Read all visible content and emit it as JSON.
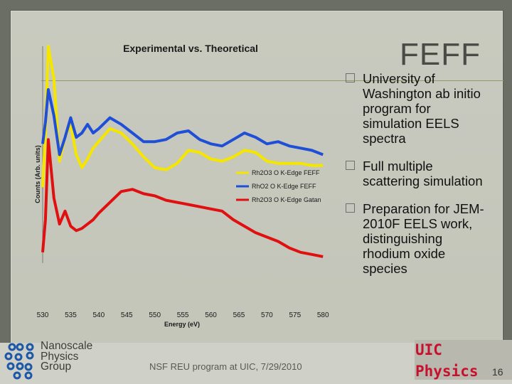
{
  "slide": {
    "title": "FEFF",
    "bullets": [
      "University of Washington ab initio program for simulation EELS spectra",
      "Full multiple scattering simulation",
      "Preparation for JEM-2010F EELS work, distinguishing rhodium oxide species"
    ],
    "footer": "NSF REU program at UIC, 7/29/2010",
    "logo_text": [
      "Nanoscale",
      "Physics",
      "Group"
    ],
    "uic_line1": "UIC",
    "uic_line2": "Physics",
    "page_number": "16",
    "bullet_icon": "box-bullet-icon",
    "colors": {
      "background": "#c6c8bc",
      "accent": "#c8102e"
    }
  },
  "chart_data": {
    "type": "line",
    "title": "Experimental vs. Theoretical",
    "xlabel": "Energy (eV)",
    "ylabel": "Counts (Arb. units)",
    "xlim": [
      530,
      582
    ],
    "ylim": [
      0,
      1
    ],
    "xticks": [
      "530",
      "535",
      "540",
      "545",
      "550",
      "555",
      "560",
      "565",
      "570",
      "575",
      "580"
    ],
    "legend_placement": "right",
    "series": [
      {
        "name": "Rh2O3 O K-Edge FEFF",
        "color": "#f5e600",
        "x": [
          530,
          530.5,
          531,
          532,
          533,
          534,
          535,
          536,
          537,
          538,
          539,
          540,
          542,
          544,
          546,
          548,
          550,
          552,
          554,
          556,
          558,
          560,
          562,
          564,
          566,
          568,
          570,
          572,
          574,
          576,
          578,
          580
        ],
        "y": [
          0.35,
          0.6,
          1.0,
          0.85,
          0.47,
          0.58,
          0.64,
          0.5,
          0.44,
          0.48,
          0.53,
          0.56,
          0.62,
          0.6,
          0.55,
          0.49,
          0.44,
          0.43,
          0.46,
          0.52,
          0.51,
          0.48,
          0.47,
          0.49,
          0.52,
          0.51,
          0.47,
          0.46,
          0.46,
          0.46,
          0.45,
          0.45
        ]
      },
      {
        "name": "RhO2 O K-Edge FEFF",
        "color": "#1f4fd6",
        "x": [
          530,
          530.5,
          531,
          532,
          533,
          534,
          535,
          536,
          537,
          538,
          539,
          540,
          542,
          544,
          546,
          548,
          550,
          552,
          554,
          556,
          558,
          560,
          562,
          564,
          566,
          568,
          570,
          572,
          574,
          576,
          578,
          580
        ],
        "y": [
          0.55,
          0.65,
          0.8,
          0.68,
          0.5,
          0.58,
          0.67,
          0.58,
          0.6,
          0.64,
          0.6,
          0.62,
          0.67,
          0.64,
          0.6,
          0.56,
          0.56,
          0.57,
          0.6,
          0.61,
          0.57,
          0.55,
          0.54,
          0.57,
          0.6,
          0.58,
          0.55,
          0.56,
          0.54,
          0.53,
          0.52,
          0.5
        ]
      },
      {
        "name": "Rh2O3 O K-Edge Gatan",
        "color": "#e01010",
        "x": [
          530,
          530.5,
          531,
          532,
          533,
          534,
          535,
          536,
          537,
          538,
          539,
          540,
          542,
          544,
          546,
          548,
          550,
          552,
          554,
          556,
          558,
          560,
          562,
          564,
          566,
          568,
          570,
          572,
          574,
          576,
          578,
          580
        ],
        "y": [
          0.05,
          0.2,
          0.57,
          0.3,
          0.18,
          0.24,
          0.17,
          0.15,
          0.16,
          0.18,
          0.2,
          0.23,
          0.28,
          0.33,
          0.34,
          0.32,
          0.31,
          0.29,
          0.28,
          0.27,
          0.26,
          0.25,
          0.24,
          0.2,
          0.17,
          0.14,
          0.12,
          0.1,
          0.07,
          0.05,
          0.04,
          0.03
        ]
      }
    ]
  }
}
